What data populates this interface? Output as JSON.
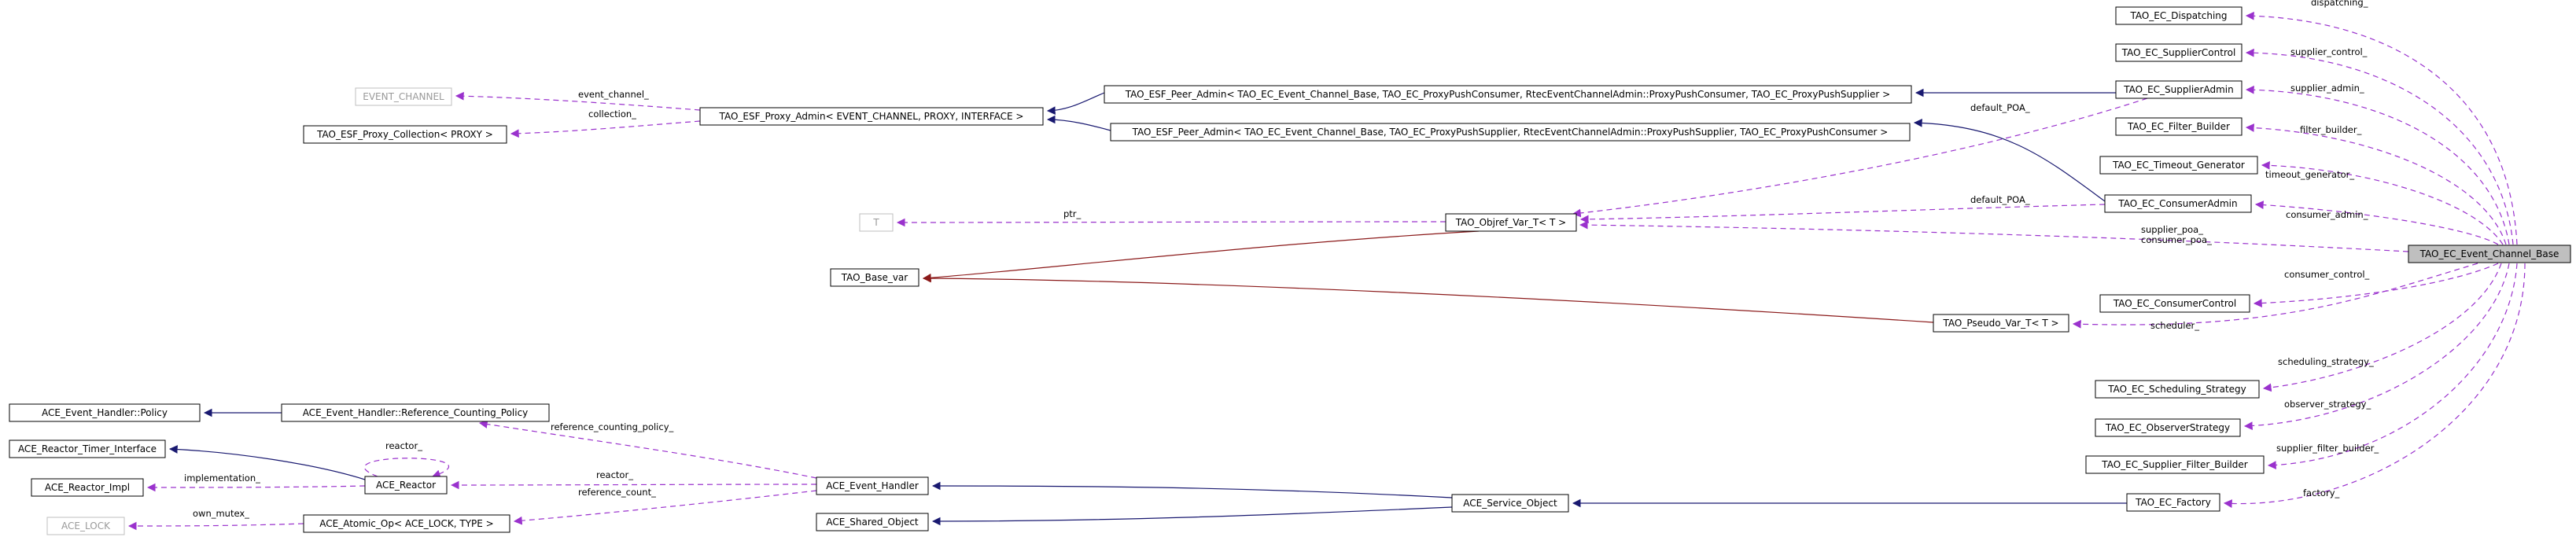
{
  "colors": {
    "usage": "#9a32cd",
    "inheritance": "#191970",
    "template": "#8b1a1a",
    "focus_fill": "#bfbfbf",
    "ghost_border": "#bfbfbf"
  },
  "nodes": [
    {
      "id": "ec_base",
      "label": "TAO_EC_Event_Channel_Base",
      "style": "focus"
    },
    {
      "id": "dispatching",
      "label": "TAO_EC_Dispatching",
      "style": "normal"
    },
    {
      "id": "supplier_control",
      "label": "TAO_EC_SupplierControl",
      "style": "normal"
    },
    {
      "id": "supplier_admin",
      "label": "TAO_EC_SupplierAdmin",
      "style": "normal"
    },
    {
      "id": "filter_builder",
      "label": "TAO_EC_Filter_Builder",
      "style": "normal"
    },
    {
      "id": "timeout_gen",
      "label": "TAO_EC_Timeout_Generator",
      "style": "normal"
    },
    {
      "id": "consumer_admin",
      "label": "TAO_EC_ConsumerAdmin",
      "style": "normal"
    },
    {
      "id": "consumer_control",
      "label": "TAO_EC_ConsumerControl",
      "style": "normal"
    },
    {
      "id": "sched_strategy",
      "label": "TAO_EC_Scheduling_Strategy",
      "style": "normal"
    },
    {
      "id": "observer_strategy",
      "label": "TAO_EC_ObserverStrategy",
      "style": "normal"
    },
    {
      "id": "supplier_filter_builder",
      "label": "TAO_EC_Supplier_Filter_Builder",
      "style": "normal"
    },
    {
      "id": "factory",
      "label": "TAO_EC_Factory",
      "style": "normal"
    },
    {
      "id": "peer_admin_consumer",
      "label": "TAO_ESF_Peer_Admin< TAO_EC_Event_Channel_Base, TAO_EC_ProxyPushConsumer, RtecEventChannelAdmin::ProxyPushConsumer, TAO_EC_ProxyPushSupplier >",
      "style": "normal"
    },
    {
      "id": "peer_admin_supplier",
      "label": "TAO_ESF_Peer_Admin< TAO_EC_Event_Channel_Base, TAO_EC_ProxyPushSupplier, RtecEventChannelAdmin::ProxyPushSupplier, TAO_EC_ProxyPushConsumer >",
      "style": "normal"
    },
    {
      "id": "proxy_admin",
      "label": "TAO_ESF_Proxy_Admin< EVENT_CHANNEL, PROXY, INTERFACE >",
      "style": "normal"
    },
    {
      "id": "event_channel",
      "label": "EVENT_CHANNEL",
      "style": "ghost"
    },
    {
      "id": "proxy_collection",
      "label": "TAO_ESF_Proxy_Collection< PROXY >",
      "style": "normal"
    },
    {
      "id": "objref_var",
      "label": "TAO_Objref_Var_T< T >",
      "style": "normal"
    },
    {
      "id": "t_param",
      "label": "T",
      "style": "ghost"
    },
    {
      "id": "base_var",
      "label": "TAO_Base_var",
      "style": "normal"
    },
    {
      "id": "pseudo_var",
      "label": "TAO_Pseudo_Var_T< T >",
      "style": "normal"
    },
    {
      "id": "eh_policy",
      "label": "ACE_Event_Handler::Policy",
      "style": "normal"
    },
    {
      "id": "eh_refcount_policy",
      "label": "ACE_Event_Handler::Reference_Counting_Policy",
      "style": "normal"
    },
    {
      "id": "reactor_timer",
      "label": "ACE_Reactor_Timer_Interface",
      "style": "normal"
    },
    {
      "id": "reactor_impl",
      "label": "ACE_Reactor_Impl",
      "style": "normal"
    },
    {
      "id": "reactor",
      "label": "ACE_Reactor",
      "style": "normal"
    },
    {
      "id": "lock",
      "label": "ACE_LOCK",
      "style": "ghost"
    },
    {
      "id": "atomic_op",
      "label": "ACE_Atomic_Op< ACE_LOCK, TYPE >",
      "style": "normal"
    },
    {
      "id": "event_handler",
      "label": "ACE_Event_Handler",
      "style": "normal"
    },
    {
      "id": "shared_object",
      "label": "ACE_Shared_Object",
      "style": "normal"
    },
    {
      "id": "service_object",
      "label": "ACE_Service_Object",
      "style": "normal"
    }
  ],
  "edges": [
    {
      "id": "e_dispatching",
      "from": "ec_base",
      "to": "dispatching",
      "kind": "usage",
      "label": "dispatching_"
    },
    {
      "id": "e_supplier_control",
      "from": "ec_base",
      "to": "supplier_control",
      "kind": "usage",
      "label": "supplier_control_"
    },
    {
      "id": "e_supplier_admin",
      "from": "ec_base",
      "to": "supplier_admin",
      "kind": "usage",
      "label": "supplier_admin_"
    },
    {
      "id": "e_filter_builder",
      "from": "ec_base",
      "to": "filter_builder",
      "kind": "usage",
      "label": "filter_builder_"
    },
    {
      "id": "e_timeout_gen",
      "from": "ec_base",
      "to": "timeout_gen",
      "kind": "usage",
      "label": "timeout_generator_"
    },
    {
      "id": "e_consumer_admin",
      "from": "ec_base",
      "to": "consumer_admin",
      "kind": "usage",
      "label": "consumer_admin_"
    },
    {
      "id": "e_poa",
      "from": "ec_base",
      "to": "objref_var",
      "kind": "usage",
      "label": "supplier_poa_\nconsumer_poa_"
    },
    {
      "id": "e_consumer_control",
      "from": "ec_base",
      "to": "consumer_control",
      "kind": "usage",
      "label": "consumer_control_"
    },
    {
      "id": "e_scheduler",
      "from": "ec_base",
      "to": "pseudo_var",
      "kind": "usage",
      "label": "scheduler_"
    },
    {
      "id": "e_sched_strategy",
      "from": "ec_base",
      "to": "sched_strategy",
      "kind": "usage",
      "label": "scheduling_strategy_"
    },
    {
      "id": "e_observer_strategy",
      "from": "ec_base",
      "to": "observer_strategy",
      "kind": "usage",
      "label": "observer_strategy_"
    },
    {
      "id": "e_supplier_filter_builder",
      "from": "ec_base",
      "to": "supplier_filter_builder",
      "kind": "usage",
      "label": "supplier_filter_builder_"
    },
    {
      "id": "e_factory",
      "from": "ec_base",
      "to": "factory",
      "kind": "usage",
      "label": "factory_"
    },
    {
      "id": "e_sa_peer",
      "from": "supplier_admin",
      "to": "peer_admin_consumer",
      "kind": "inheritance",
      "label": ""
    },
    {
      "id": "e_sa_poa",
      "from": "supplier_admin",
      "to": "objref_var",
      "kind": "usage",
      "label": "default_POA_"
    },
    {
      "id": "e_ca_peer",
      "from": "consumer_admin",
      "to": "peer_admin_supplier",
      "kind": "inheritance",
      "label": ""
    },
    {
      "id": "e_ca_poa",
      "from": "consumer_admin",
      "to": "objref_var",
      "kind": "usage",
      "label": "default_POA_"
    },
    {
      "id": "e_peer_c_proxy",
      "from": "peer_admin_consumer",
      "to": "proxy_admin",
      "kind": "inheritance",
      "label": ""
    },
    {
      "id": "e_peer_s_proxy",
      "from": "peer_admin_supplier",
      "to": "proxy_admin",
      "kind": "inheritance",
      "label": ""
    },
    {
      "id": "e_proxy_event_channel",
      "from": "proxy_admin",
      "to": "event_channel",
      "kind": "usage",
      "label": "event_channel_"
    },
    {
      "id": "e_proxy_collection",
      "from": "proxy_admin",
      "to": "proxy_collection",
      "kind": "usage",
      "label": "collection_"
    },
    {
      "id": "e_objref_t",
      "from": "objref_var",
      "to": "t_param",
      "kind": "usage",
      "label": "ptr_"
    },
    {
      "id": "e_objref_base",
      "from": "objref_var",
      "to": "base_var",
      "kind": "template",
      "label": ""
    },
    {
      "id": "e_pseudo_base",
      "from": "pseudo_var",
      "to": "base_var",
      "kind": "template",
      "label": ""
    },
    {
      "id": "e_factory_service",
      "from": "factory",
      "to": "service_object",
      "kind": "inheritance",
      "label": ""
    },
    {
      "id": "e_service_eh",
      "from": "service_object",
      "to": "event_handler",
      "kind": "inheritance",
      "label": ""
    },
    {
      "id": "e_service_shared",
      "from": "service_object",
      "to": "shared_object",
      "kind": "inheritance",
      "label": ""
    },
    {
      "id": "e_eh_refcount",
      "from": "event_handler",
      "to": "eh_refcount_policy",
      "kind": "usage",
      "label": "reference_counting_policy_"
    },
    {
      "id": "e_eh_reactor",
      "from": "event_handler",
      "to": "reactor",
      "kind": "usage",
      "label": "reactor_"
    },
    {
      "id": "e_eh_atomic",
      "from": "event_handler",
      "to": "atomic_op",
      "kind": "usage",
      "label": "reference_count_"
    },
    {
      "id": "e_refcount_policy",
      "from": "eh_refcount_policy",
      "to": "eh_policy",
      "kind": "inheritance",
      "label": ""
    },
    {
      "id": "e_reactor_timer",
      "from": "reactor",
      "to": "reactor_timer",
      "kind": "inheritance",
      "label": ""
    },
    {
      "id": "e_reactor_impl",
      "from": "reactor",
      "to": "reactor_impl",
      "kind": "usage",
      "label": "implementation_"
    },
    {
      "id": "e_reactor_self",
      "from": "reactor",
      "to": "reactor",
      "kind": "usage",
      "label": "reactor_"
    },
    {
      "id": "e_atomic_lock",
      "from": "atomic_op",
      "to": "lock",
      "kind": "usage",
      "label": "own_mutex_"
    }
  ]
}
